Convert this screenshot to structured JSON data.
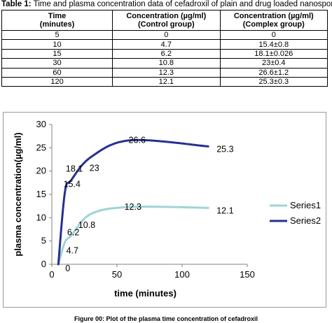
{
  "table": {
    "caption_label": "Table 1:",
    "caption_text": "Time and plasma concentration data of cefadroxil of plain and drug loaded nanosponges",
    "headers": [
      [
        "Time",
        "(minutes)"
      ],
      [
        "Concentration (µg/ml)",
        "(Control group)"
      ],
      [
        "Concentration (µg/ml)",
        "(Complex group)"
      ]
    ],
    "rows": [
      [
        "5",
        "0",
        "0"
      ],
      [
        "10",
        "4.7",
        "15.4±0.8"
      ],
      [
        "15",
        "6.2",
        "18.1±0.026"
      ],
      [
        "30",
        "10.8",
        "23±0.4"
      ],
      [
        "60",
        "12.3",
        "26.6±1.2"
      ],
      [
        "120",
        "12.1",
        "25.3±0.3"
      ]
    ]
  },
  "chart_data": {
    "type": "line",
    "xlabel": "time (minutes)",
    "ylabel": "plasma concentration(µg/ml)",
    "xlim": [
      0,
      150
    ],
    "ylim": [
      0,
      30
    ],
    "xticks": [
      "0",
      "50",
      "100",
      "150"
    ],
    "yticks": [
      "0",
      "5",
      "10",
      "15",
      "20",
      "25",
      "30"
    ],
    "x": [
      5,
      10,
      15,
      30,
      60,
      120
    ],
    "series": [
      {
        "name": "Series1",
        "color": "#9fd4d6",
        "values": [
          0,
          4.7,
          6.2,
          10.8,
          12.3,
          12.1
        ],
        "labels": [
          "0",
          "4.7",
          "6.2",
          "10.8",
          "12.3",
          "12.1"
        ]
      },
      {
        "name": "Series2",
        "color": "#25308f",
        "values": [
          0,
          15.4,
          18.1,
          23,
          26.6,
          25.3
        ],
        "labels": [
          "0",
          "15.4",
          "18.1",
          "23",
          "26.6",
          "25.3"
        ]
      }
    ],
    "legend_position": "right",
    "grid": false,
    "smooth": true
  },
  "figure_caption": "Figure 00: Plot of the plasma time concentration of cefadroxil"
}
